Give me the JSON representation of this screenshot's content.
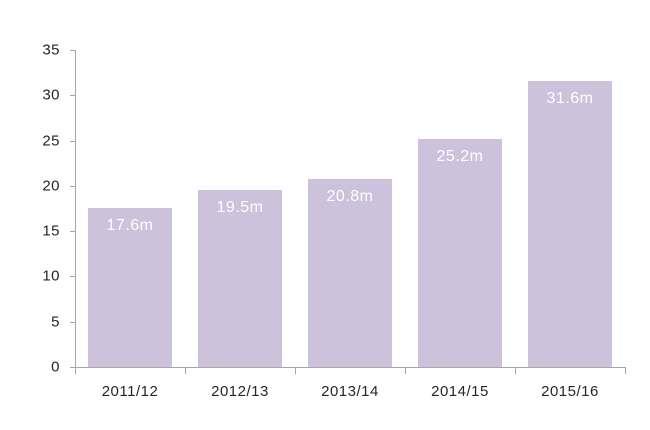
{
  "chart_data": {
    "type": "bar",
    "title": "",
    "subtitle": "",
    "categories": [
      "2011/12",
      "2012/13",
      "2013/14",
      "2014/15",
      "2015/16"
    ],
    "values": [
      17.6,
      19.5,
      20.8,
      25.2,
      31.6
    ],
    "data_labels": [
      "17.6m",
      "19.5m",
      "20.8m",
      "25.2m",
      "31.6m"
    ],
    "xlabel": "",
    "ylabel": "",
    "ylim": [
      0,
      35
    ],
    "ytick_step": 5,
    "ytick_labels": [
      "0",
      "5",
      "10",
      "15",
      "20",
      "25",
      "30",
      "35"
    ],
    "grid": false,
    "legend_position": "none",
    "colors": {
      "bar": "#ccc2db",
      "data_label": "#ffffff",
      "axis": "#a6a6a6",
      "tick_label": "#262626",
      "background": "#ffffff"
    }
  }
}
